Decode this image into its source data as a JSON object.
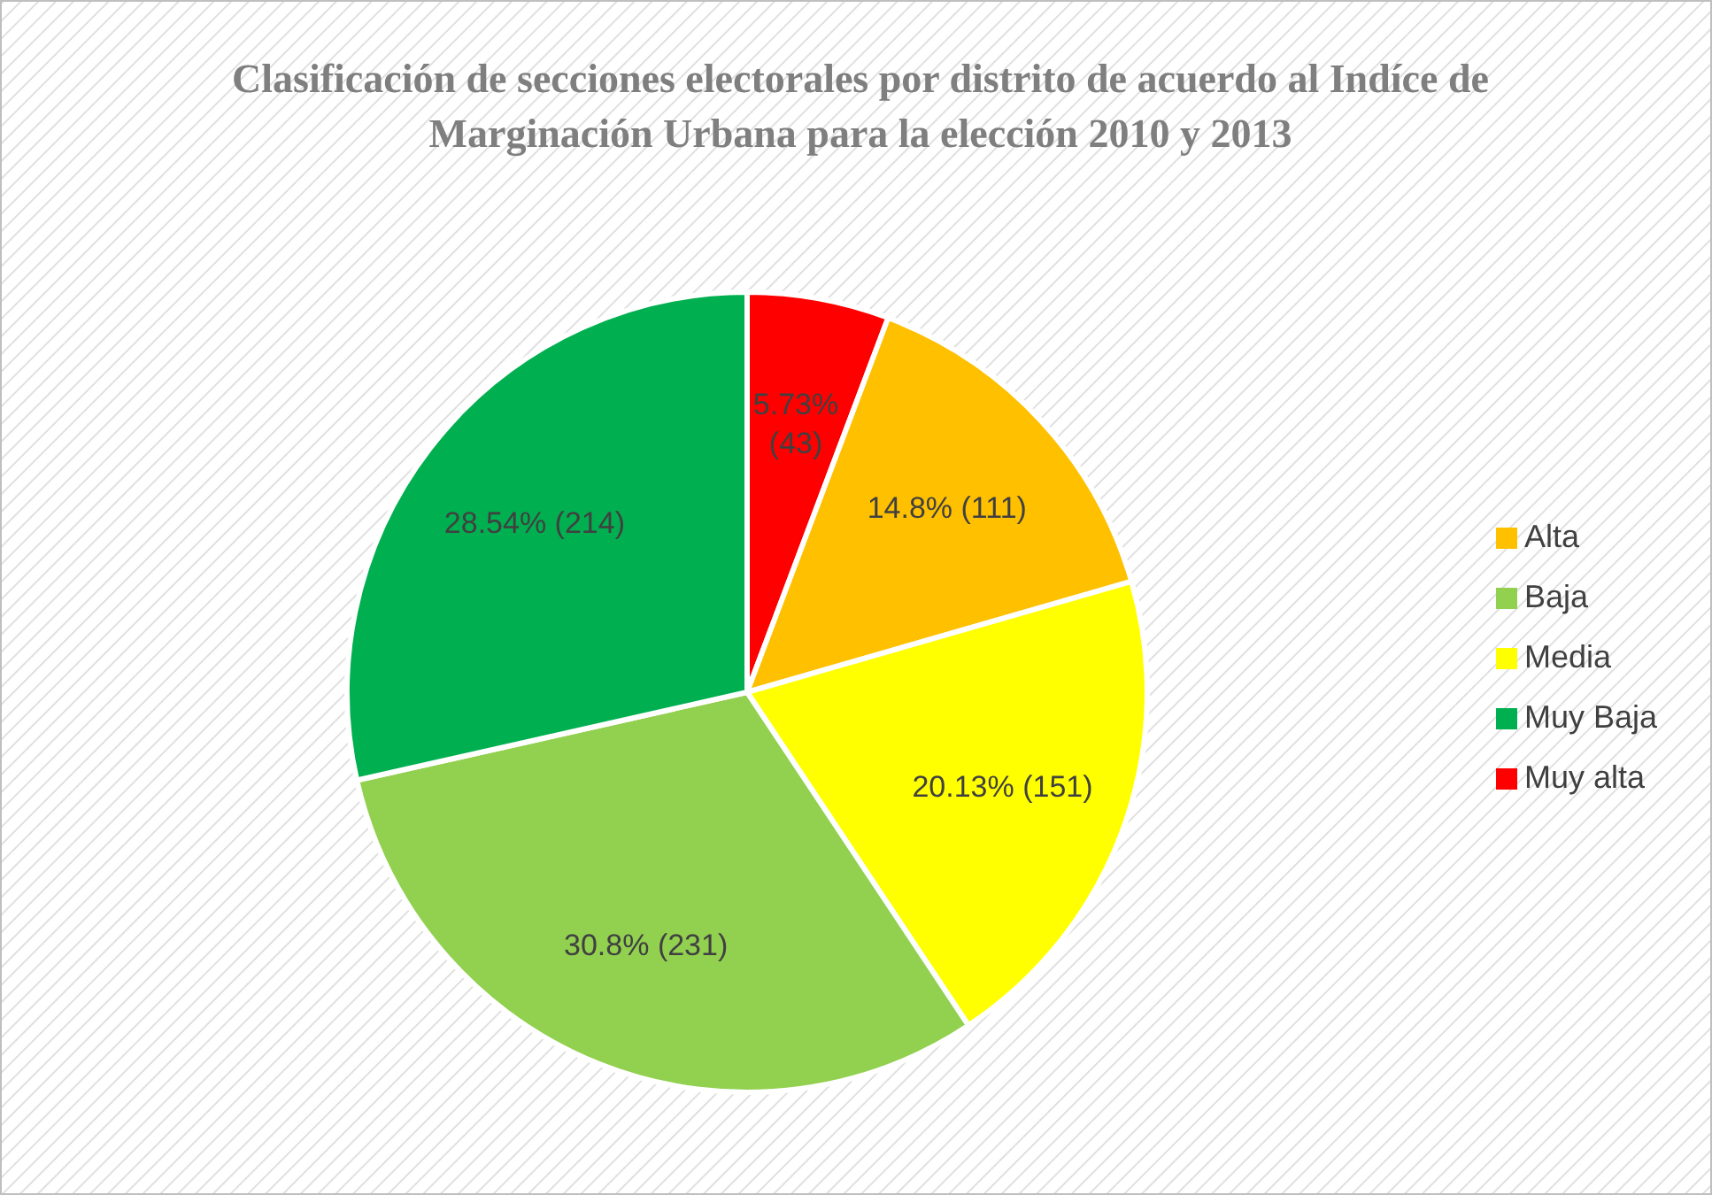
{
  "chart_data": {
    "type": "pie",
    "title": "Clasificación de secciones electorales por distrito de acuerdo al Indíce de Marginación Urbana para la elección 2010 y 2013",
    "categories": [
      "Muy alta",
      "Alta",
      "Media",
      "Baja",
      "Muy Baja"
    ],
    "values": [
      43,
      111,
      151,
      231,
      214
    ],
    "colors": [
      "#ff0000",
      "#ffc000",
      "#ffff00",
      "#92d050",
      "#00b050"
    ],
    "value_labels": [
      "5.73% (43)",
      "14.8% (111)",
      "20.13% (151)",
      "30.8% (231)",
      "28.54% (214)"
    ],
    "legend": "right"
  }
}
